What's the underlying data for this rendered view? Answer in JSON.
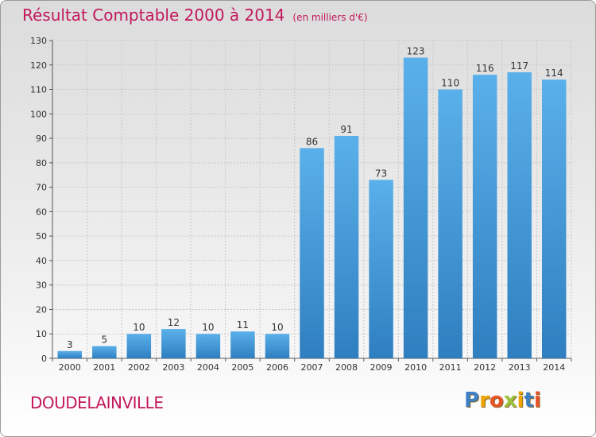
{
  "header": {
    "title": "Résultat Comptable 2000 à 2014",
    "subtitle": "(en milliers d'€)"
  },
  "commune": "DOUDELAINVILLE",
  "logo": {
    "text": "Proxiti",
    "letters": [
      {
        "char": "P",
        "color": "#3d7fc4"
      },
      {
        "char": "r",
        "color": "#f0a500"
      },
      {
        "char": "o",
        "color": "#e8542a"
      },
      {
        "char": "x",
        "color": "#9ac23c"
      },
      {
        "char": "i",
        "color": "#f0a500"
      },
      {
        "char": "t",
        "color": "#3d7fc4"
      },
      {
        "char": "i",
        "color": "#e8542a"
      }
    ]
  },
  "chart_data": {
    "type": "bar",
    "categories": [
      "2000",
      "2001",
      "2002",
      "2003",
      "2004",
      "2005",
      "2006",
      "2007",
      "2008",
      "2009",
      "2010",
      "2011",
      "2012",
      "2013",
      "2014"
    ],
    "values": [
      3,
      5,
      10,
      12,
      10,
      11,
      10,
      86,
      91,
      73,
      123,
      110,
      116,
      117,
      114
    ],
    "ylim": [
      0,
      130
    ],
    "yticks": [
      0,
      10,
      20,
      30,
      40,
      50,
      60,
      70,
      80,
      90,
      100,
      110,
      120,
      130
    ],
    "grid": true,
    "bar_color_top": "#5ab0ea",
    "bar_color_bottom": "#2f7fc0",
    "title_color": "#c2185b"
  }
}
